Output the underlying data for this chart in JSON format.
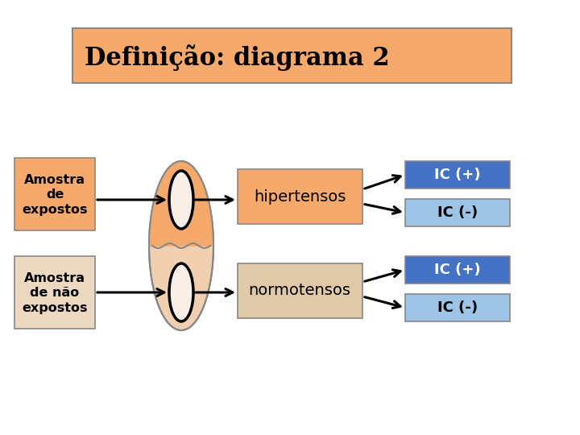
{
  "title": "Definição: diagrama 2",
  "title_box_color": "#F5A96B",
  "title_text_color": "#000000",
  "bg_color": "#FFFFFF",
  "label_amostra_expostos": "Amostra\nde\nexpostos",
  "label_amostra_nao_expostos": "Amostra\nde não\nexpostos",
  "label_hipertensos": "hipertensos",
  "label_normotensos": "normotensos",
  "label_ic_plus": "IC (+)",
  "label_ic_minus": "IC (-)",
  "box_amostra_exp_color": "#F5A96B",
  "box_amostra_nao_color": "#EDD9C0",
  "box_hipertensos_color": "#F5A96B",
  "box_normotensos_color": "#DFC9A8",
  "box_ic_plus_color": "#4472C4",
  "box_ic_minus_color": "#9DC3E6",
  "ellipse_outer_upper_color": "#F5A96B",
  "ellipse_outer_lower_color": "#F0D0B0",
  "ellipse_inner_color": "#F8F0E8",
  "ellipse_line_color": "#888888",
  "ellipse_inner_line_color": "#000000",
  "arrow_color": "#000000",
  "border_color": "#888888"
}
